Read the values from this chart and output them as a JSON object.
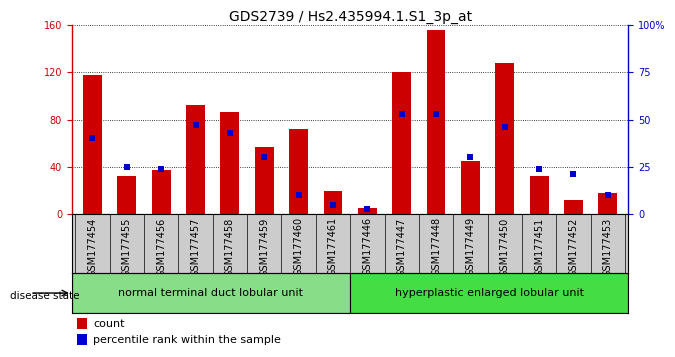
{
  "title": "GDS2739 / Hs2.435994.1.S1_3p_at",
  "categories": [
    "GSM177454",
    "GSM177455",
    "GSM177456",
    "GSM177457",
    "GSM177458",
    "GSM177459",
    "GSM177460",
    "GSM177461",
    "GSM177446",
    "GSM177447",
    "GSM177448",
    "GSM177449",
    "GSM177450",
    "GSM177451",
    "GSM177452",
    "GSM177453"
  ],
  "count_values": [
    118,
    32,
    37,
    92,
    86,
    57,
    72,
    20,
    5,
    120,
    156,
    45,
    128,
    32,
    12,
    18
  ],
  "percentile_values": [
    40,
    25,
    24,
    47,
    43,
    30,
    10,
    5,
    3,
    53,
    53,
    30,
    46,
    24,
    21,
    10
  ],
  "count_color": "#cc0000",
  "percentile_color": "#0000cc",
  "left_ylim": [
    0,
    160
  ],
  "right_ylim": [
    0,
    100
  ],
  "left_yticks": [
    0,
    40,
    80,
    120,
    160
  ],
  "right_yticks": [
    0,
    25,
    50,
    75,
    100
  ],
  "right_yticklabels": [
    "0",
    "25",
    "50",
    "75",
    "100%"
  ],
  "group1_label": "normal terminal duct lobular unit",
  "group2_label": "hyperplastic enlarged lobular unit",
  "group1_count": 8,
  "group2_count": 8,
  "disease_state_label": "disease state",
  "legend_count": "count",
  "legend_percentile": "percentile rank within the sample",
  "bar_width": 0.55,
  "bg_color": "#cccccc",
  "group1_color": "#88dd88",
  "group2_color": "#44dd44",
  "title_fontsize": 10,
  "tick_fontsize": 7,
  "label_fontsize": 8
}
